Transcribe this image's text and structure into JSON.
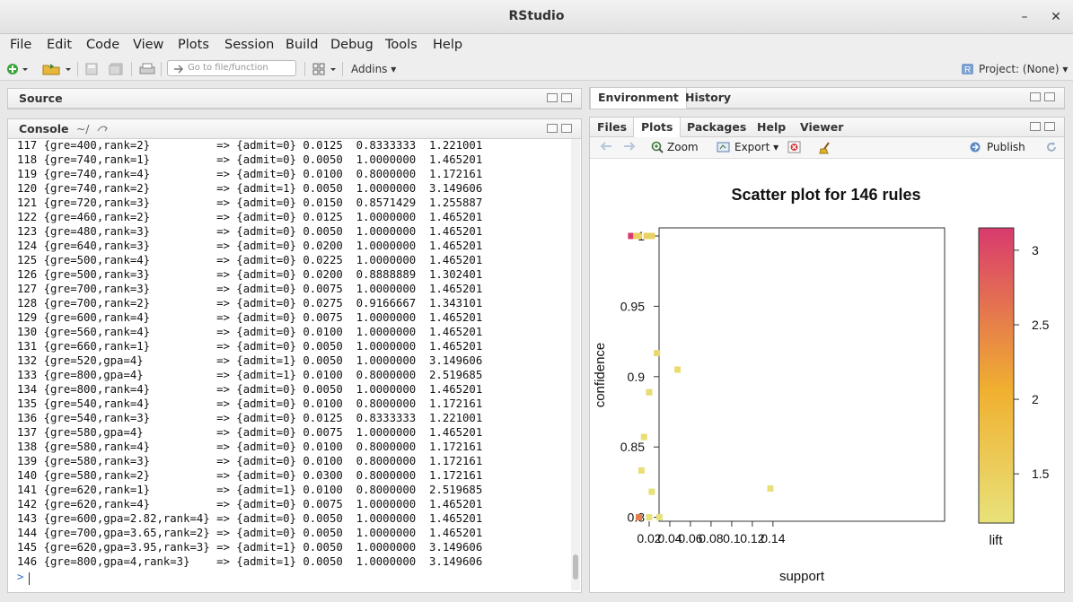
{
  "window": {
    "title": "RStudio",
    "minimize_label": "–",
    "close_label": "✕"
  },
  "menu": [
    "File",
    "Edit",
    "Code",
    "View",
    "Plots",
    "Session",
    "Build",
    "Debug",
    "Tools",
    "Help"
  ],
  "toolbar": {
    "goto_placeholder": "Go to file/function",
    "addins_label": "Addins ▾",
    "project_label": "Project: (None) ▾"
  },
  "source_pane": {
    "title": "Source"
  },
  "console_pane": {
    "title": "Console",
    "path": "~/",
    "prompt": ">"
  },
  "console_lines": [
    "117 {gre=400,rank=2}          => {admit=0} 0.0125  0.8333333  1.221001",
    "118 {gre=740,rank=1}          => {admit=0} 0.0050  1.0000000  1.465201",
    "119 {gre=740,rank=4}          => {admit=0} 0.0100  0.8000000  1.172161",
    "120 {gre=740,rank=2}          => {admit=1} 0.0050  1.0000000  3.149606",
    "121 {gre=720,rank=3}          => {admit=0} 0.0150  0.8571429  1.255887",
    "122 {gre=460,rank=2}          => {admit=0} 0.0125  1.0000000  1.465201",
    "123 {gre=480,rank=3}          => {admit=0} 0.0050  1.0000000  1.465201",
    "124 {gre=640,rank=3}          => {admit=0} 0.0200  1.0000000  1.465201",
    "125 {gre=500,rank=4}          => {admit=0} 0.0225  1.0000000  1.465201",
    "126 {gre=500,rank=3}          => {admit=0} 0.0200  0.8888889  1.302401",
    "127 {gre=700,rank=3}          => {admit=0} 0.0075  1.0000000  1.465201",
    "128 {gre=700,rank=2}          => {admit=0} 0.0275  0.9166667  1.343101",
    "129 {gre=600,rank=4}          => {admit=0} 0.0075  1.0000000  1.465201",
    "130 {gre=560,rank=4}          => {admit=0} 0.0100  1.0000000  1.465201",
    "131 {gre=660,rank=1}          => {admit=0} 0.0050  1.0000000  1.465201",
    "132 {gre=520,gpa=4}           => {admit=1} 0.0050  1.0000000  3.149606",
    "133 {gre=800,gpa=4}           => {admit=1} 0.0100  0.8000000  2.519685",
    "134 {gre=800,rank=4}          => {admit=0} 0.0050  1.0000000  1.465201",
    "135 {gre=540,rank=4}          => {admit=0} 0.0100  0.8000000  1.172161",
    "136 {gre=540,rank=3}          => {admit=0} 0.0125  0.8333333  1.221001",
    "137 {gre=580,gpa=4}           => {admit=0} 0.0075  1.0000000  1.465201",
    "138 {gre=580,rank=4}          => {admit=0} 0.0100  0.8000000  1.172161",
    "139 {gre=580,rank=3}          => {admit=0} 0.0100  0.8000000  1.172161",
    "140 {gre=580,rank=2}          => {admit=0} 0.0300  0.8000000  1.172161",
    "141 {gre=620,rank=1}          => {admit=1} 0.0100  0.8000000  2.519685",
    "142 {gre=620,rank=4}          => {admit=0} 0.0075  1.0000000  1.465201",
    "143 {gre=600,gpa=2.82,rank=4} => {admit=0} 0.0050  1.0000000  1.465201",
    "144 {gre=700,gpa=3.65,rank=2} => {admit=0} 0.0050  1.0000000  1.465201",
    "145 {gre=620,gpa=3.95,rank=3} => {admit=1} 0.0050  1.0000000  3.149606",
    "146 {gre=800,gpa=4,rank=3}    => {admit=1} 0.0050  1.0000000  3.149606"
  ],
  "env_pane": {
    "tabs": [
      "Environment",
      "History"
    ]
  },
  "files_pane": {
    "tabs": [
      "Files",
      "Plots",
      "Packages",
      "Help",
      "Viewer"
    ],
    "active_tab": "Plots",
    "zoom_label": "Zoom",
    "export_label": "Export ▾",
    "publish_label": "Publish"
  },
  "chart_data": {
    "type": "scatter",
    "title": "Scatter plot for 146 rules",
    "xlabel": "support",
    "ylabel": "confidence",
    "xlim": [
      0,
      0.14
    ],
    "ylim": [
      0.8,
      1.0
    ],
    "xticks": [
      "0.02",
      "0.04",
      "0.06",
      "0.08",
      "0.1",
      "0.12",
      "0.14"
    ],
    "yticks": [
      "0.8",
      "0.85",
      "0.9",
      "0.95",
      "1"
    ],
    "color_label": "lift",
    "color_range": [
      1.17,
      3.15
    ],
    "color_ticks": [
      "1.5",
      "2",
      "2.5",
      "3"
    ],
    "color_low": "#e8e27a",
    "color_mid": "#f0b030",
    "color_high": "#d93a6e",
    "points": [
      {
        "x": 0.0025,
        "y": 1.0,
        "lift": 3.15
      },
      {
        "x": 0.005,
        "y": 1.0,
        "lift": 3.15
      },
      {
        "x": 0.0075,
        "y": 1.0,
        "lift": 1.47
      },
      {
        "x": 0.01,
        "y": 1.0,
        "lift": 1.47
      },
      {
        "x": 0.0175,
        "y": 1.0,
        "lift": 1.47
      },
      {
        "x": 0.02,
        "y": 1.0,
        "lift": 1.47
      },
      {
        "x": 0.0225,
        "y": 1.0,
        "lift": 1.47
      },
      {
        "x": 0.0275,
        "y": 0.9167,
        "lift": 1.34
      },
      {
        "x": 0.0475,
        "y": 0.905,
        "lift": 1.3
      },
      {
        "x": 0.02,
        "y": 0.8889,
        "lift": 1.3
      },
      {
        "x": 0.015,
        "y": 0.8571,
        "lift": 1.26
      },
      {
        "x": 0.0125,
        "y": 0.8333,
        "lift": 1.22
      },
      {
        "x": 0.0225,
        "y": 0.8182,
        "lift": 1.2
      },
      {
        "x": 0.1375,
        "y": 0.8205,
        "lift": 1.2
      },
      {
        "x": 0.01,
        "y": 0.8,
        "lift": 2.52
      },
      {
        "x": 0.02,
        "y": 0.8,
        "lift": 1.17
      },
      {
        "x": 0.03,
        "y": 0.8,
        "lift": 1.17
      }
    ]
  }
}
